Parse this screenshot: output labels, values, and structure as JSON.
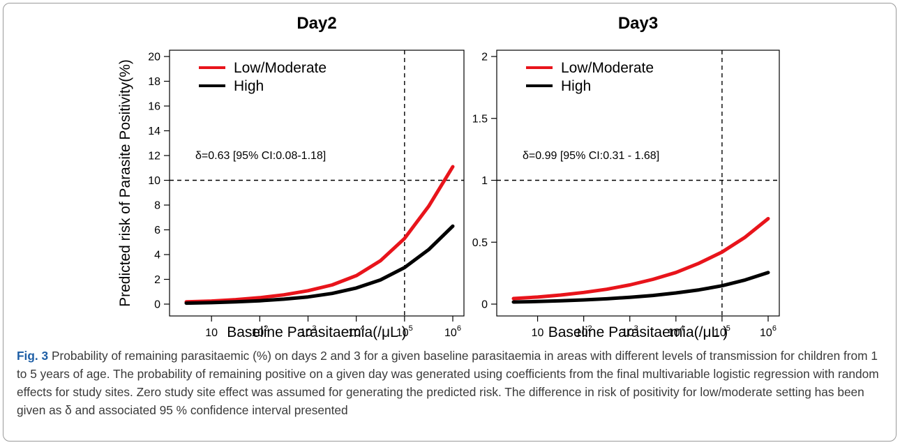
{
  "figure": {
    "caption_label": "Fig. 3",
    "caption_text": "Probability of remaining parasitaemic (%) on days 2 and 3 for a given baseline parasitaemia in areas with different levels of transmission for children from 1 to 5 years of age. The probability of remaining positive on a given day was generated using coefficients from the final multivariable logistic regression with random effects for study sites. Zero study site effect was assumed for generating the predicted risk. The difference in risk of positivity for low/moderate setting has been given as δ and associated 95 % confidence interval presented"
  },
  "colors": {
    "low_moderate": "#e8141b",
    "high": "#000000"
  },
  "chart_data": [
    {
      "type": "line",
      "title": "Day2",
      "xlabel": "Baseline Parasitaemia(/μL )",
      "ylabel": "Predicted risk of Parasite Positivity(%)",
      "x_scale": "log10",
      "xlim": [
        3,
        1000000
      ],
      "ylim": [
        0,
        20
      ],
      "x_ticks": [
        {
          "value": 10,
          "base": "10",
          "exp": ""
        },
        {
          "value": 100,
          "base": "10",
          "exp": "2"
        },
        {
          "value": 1000,
          "base": "10",
          "exp": "3"
        },
        {
          "value": 10000,
          "base": "10",
          "exp": "4"
        },
        {
          "value": 100000,
          "base": "10",
          "exp": "5"
        },
        {
          "value": 1000000,
          "base": "10",
          "exp": "6"
        }
      ],
      "y_ticks": [
        {
          "value": 0,
          "label": "0"
        },
        {
          "value": 2,
          "label": "2"
        },
        {
          "value": 4,
          "label": "4"
        },
        {
          "value": 6,
          "label": "6"
        },
        {
          "value": 8,
          "label": "8"
        },
        {
          "value": 10,
          "label": "10"
        },
        {
          "value": 12,
          "label": "12"
        },
        {
          "value": 14,
          "label": "14"
        },
        {
          "value": 16,
          "label": "16"
        },
        {
          "value": 18,
          "label": "18"
        },
        {
          "value": 20,
          "label": "20"
        }
      ],
      "reference_lines": {
        "x": 100000,
        "y": 10
      },
      "annotation": "δ=0.63 [95% CI:0.08-1.18]",
      "legend": {
        "position": "top-left",
        "entries": [
          "Low/Moderate",
          "High"
        ]
      },
      "series": [
        {
          "name": "Low/Moderate",
          "color": "#e8141b",
          "x": [
            3,
            10,
            31.6,
            100,
            316,
            1000,
            3162,
            10000,
            31623,
            100000,
            316228,
            1000000
          ],
          "y": [
            0.18,
            0.25,
            0.36,
            0.52,
            0.75,
            1.08,
            1.55,
            2.3,
            3.5,
            5.3,
            7.9,
            11.1
          ]
        },
        {
          "name": "High",
          "color": "#000000",
          "x": [
            3,
            10,
            31.6,
            100,
            316,
            1000,
            3162,
            10000,
            31623,
            100000,
            316228,
            1000000
          ],
          "y": [
            0.08,
            0.12,
            0.18,
            0.27,
            0.4,
            0.58,
            0.86,
            1.3,
            1.95,
            2.95,
            4.4,
            6.3
          ]
        }
      ]
    },
    {
      "type": "line",
      "title": "Day3",
      "xlabel": "Baseline Parasitaemia(/μL )",
      "ylabel": "",
      "x_scale": "log10",
      "xlim": [
        3,
        1000000
      ],
      "ylim": [
        0,
        2
      ],
      "x_ticks": [
        {
          "value": 10,
          "base": "10",
          "exp": ""
        },
        {
          "value": 100,
          "base": "10",
          "exp": "2"
        },
        {
          "value": 1000,
          "base": "10",
          "exp": "3"
        },
        {
          "value": 10000,
          "base": "10",
          "exp": "4"
        },
        {
          "value": 100000,
          "base": "10",
          "exp": "5"
        },
        {
          "value": 1000000,
          "base": "10",
          "exp": "6"
        }
      ],
      "y_ticks": [
        {
          "value": 0,
          "label": "0"
        },
        {
          "value": 0.5,
          "label": "0.5"
        },
        {
          "value": 1,
          "label": "1"
        },
        {
          "value": 1.5,
          "label": "1.5"
        },
        {
          "value": 2,
          "label": "2"
        }
      ],
      "reference_lines": {
        "x": 100000,
        "y": 1
      },
      "annotation": "δ=0.99 [95% CI:0.31 - 1.68]",
      "legend": {
        "position": "top-left",
        "entries": [
          "Low/Moderate",
          "High"
        ]
      },
      "series": [
        {
          "name": "Low/Moderate",
          "color": "#e8141b",
          "x": [
            3,
            10,
            31.6,
            100,
            316,
            1000,
            3162,
            10000,
            31623,
            100000,
            316228,
            1000000
          ],
          "y": [
            0.045,
            0.057,
            0.073,
            0.094,
            0.12,
            0.155,
            0.2,
            0.255,
            0.33,
            0.42,
            0.54,
            0.69
          ]
        },
        {
          "name": "High",
          "color": "#000000",
          "x": [
            3,
            10,
            31.6,
            100,
            316,
            1000,
            3162,
            10000,
            31623,
            100000,
            316228,
            1000000
          ],
          "y": [
            0.017,
            0.021,
            0.027,
            0.034,
            0.043,
            0.055,
            0.07,
            0.09,
            0.115,
            0.148,
            0.195,
            0.255
          ]
        }
      ]
    }
  ]
}
